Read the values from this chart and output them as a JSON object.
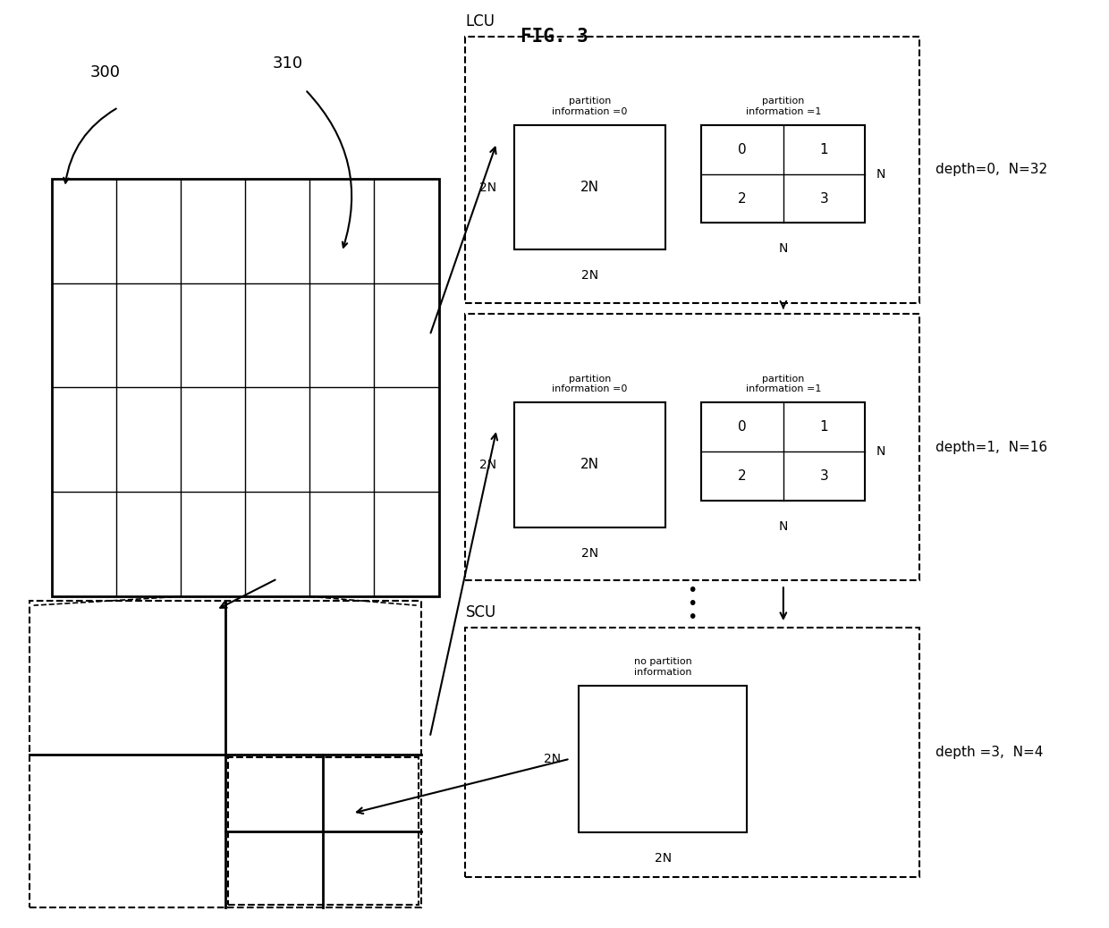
{
  "title": "FIG. 3",
  "bg_color": "#ffffff",
  "grid_label_300": "300",
  "grid_label_310": "310",
  "lcu_label": "LCU",
  "scu_label": "SCU",
  "depth_labels": [
    "depth=0,  N=32",
    "depth=1,  N=16",
    "depth =3,  N=4"
  ],
  "partition_info_0": "partition\ninformation =0",
  "partition_info_1": "partition\ninformation =1",
  "no_partition_info": "no partition\ninformation"
}
